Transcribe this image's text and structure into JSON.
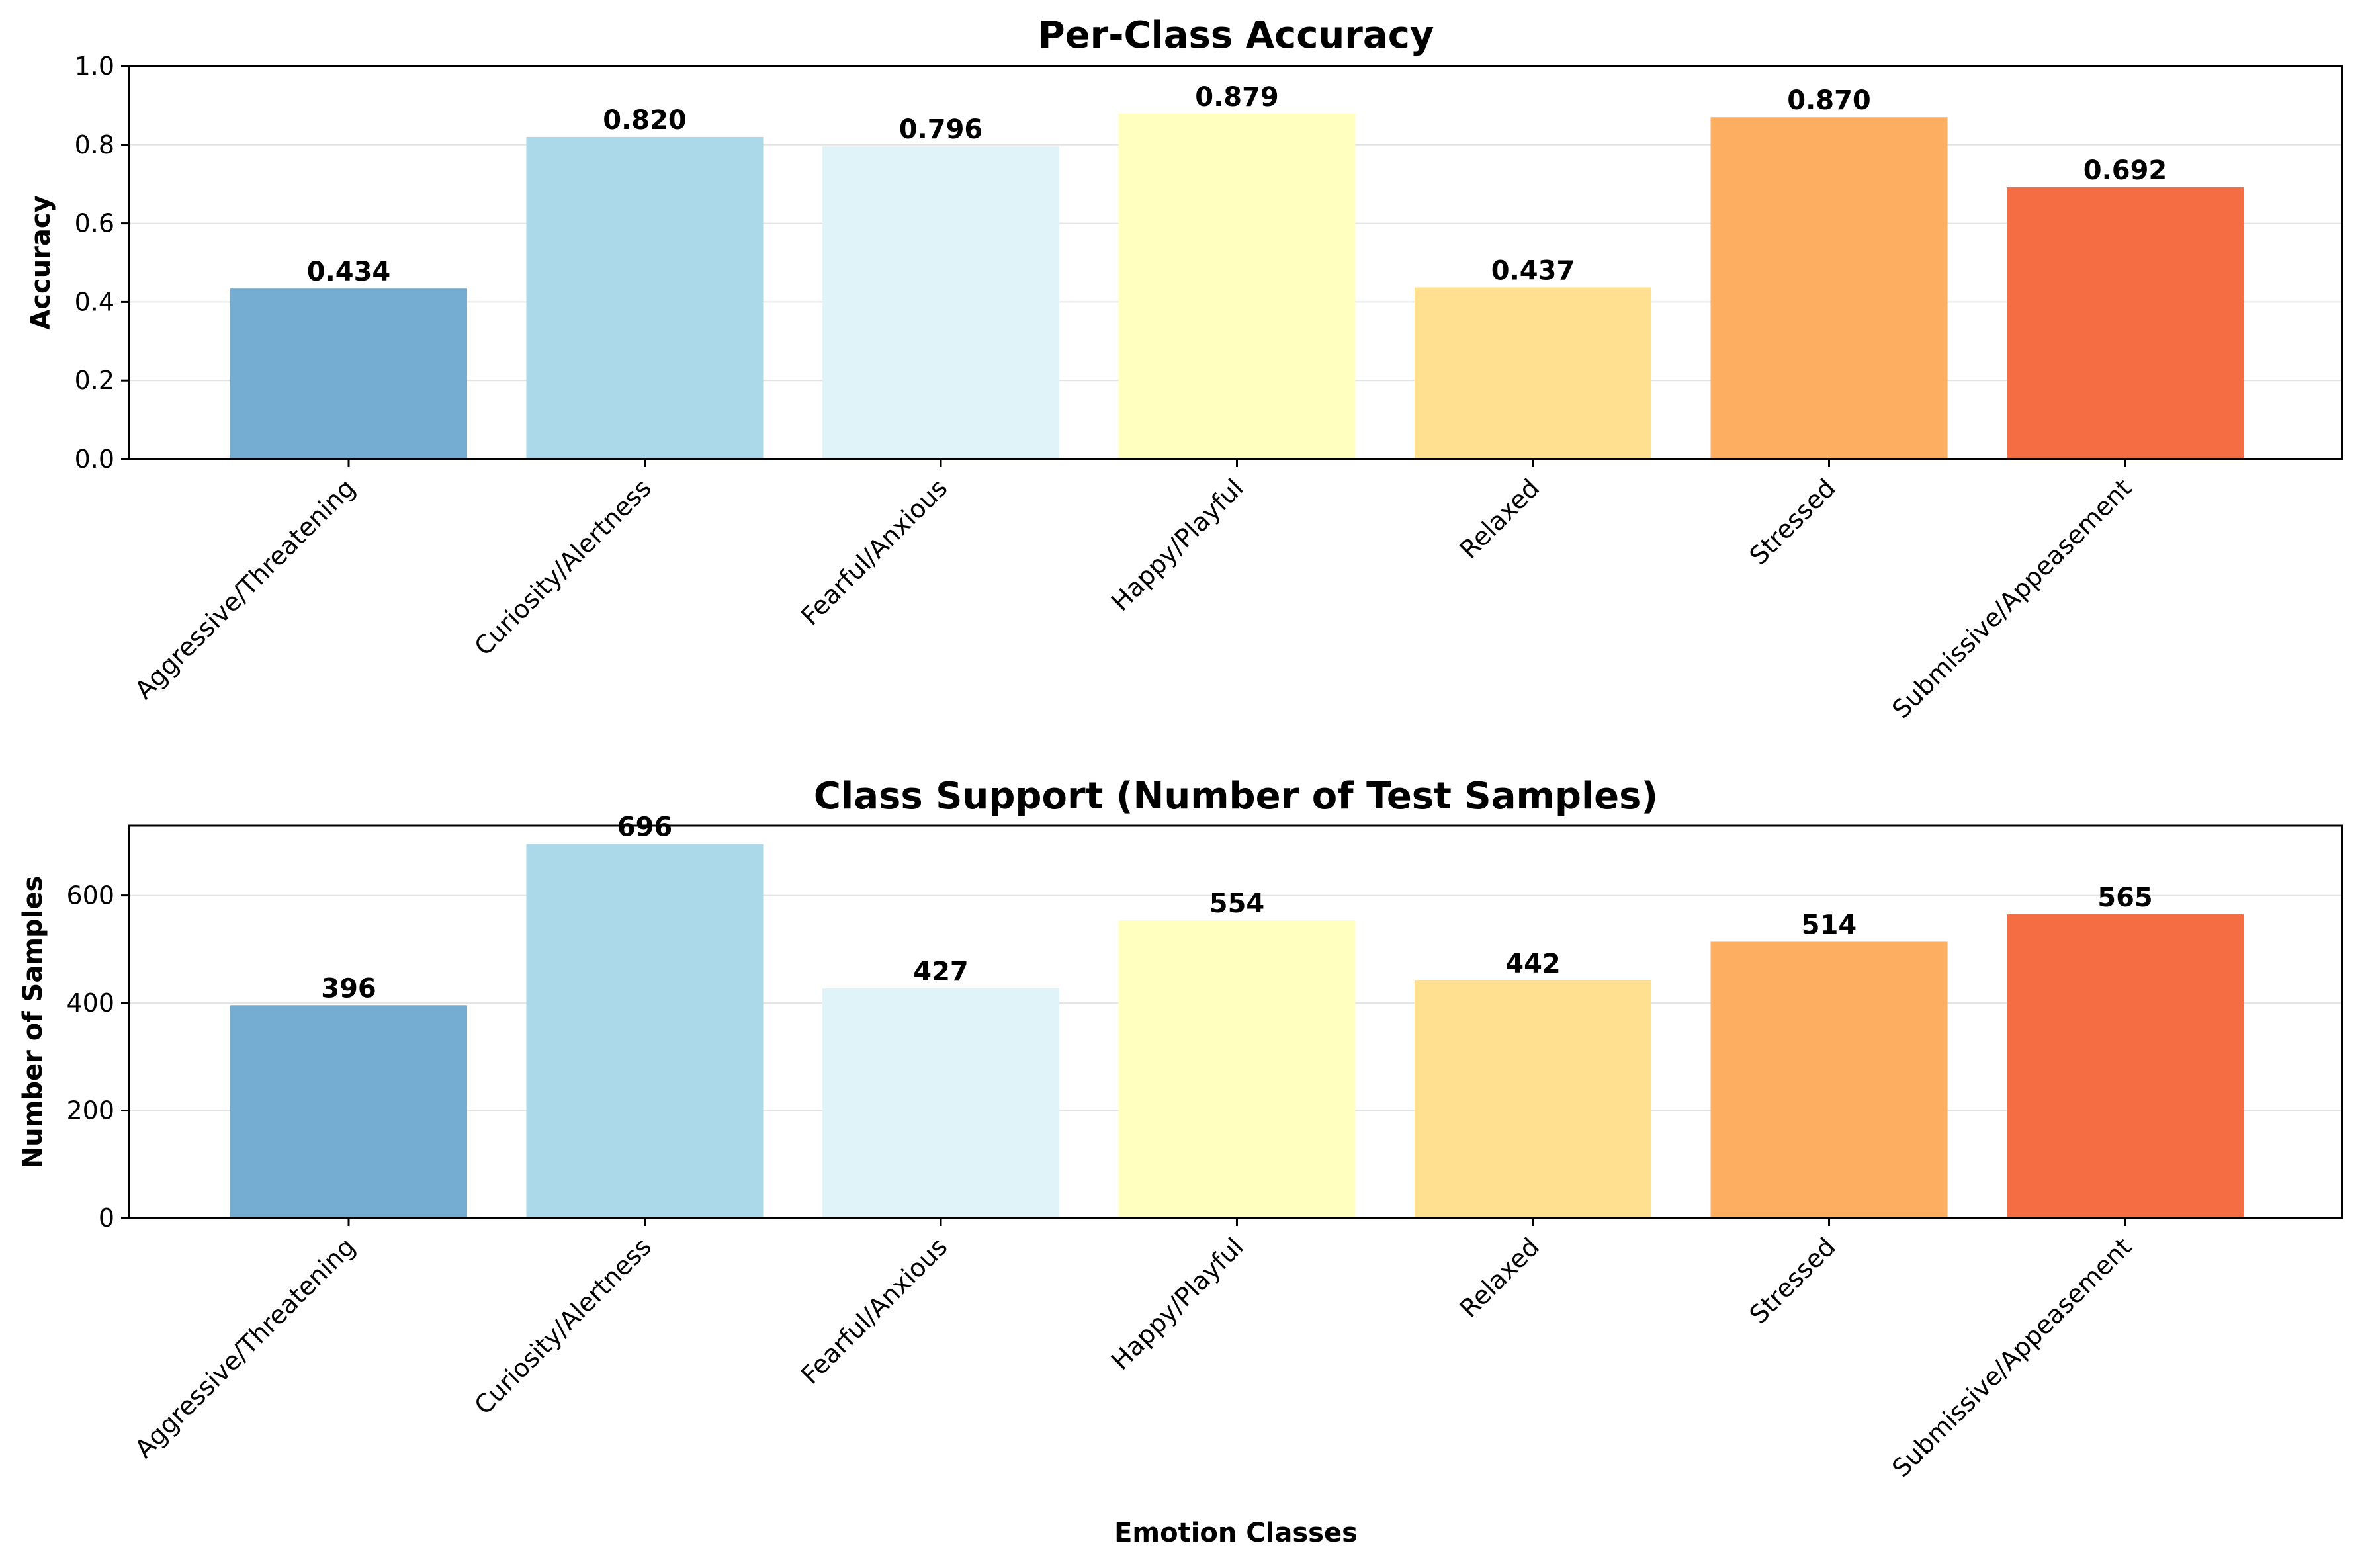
{
  "chart_data": [
    {
      "type": "bar",
      "title": "Per-Class Accuracy",
      "xlabel": "",
      "ylabel": "Accuracy",
      "ylim": [
        0,
        1.0
      ],
      "yticks": [
        0.0,
        0.2,
        0.4,
        0.6,
        0.8,
        1.0
      ],
      "ytick_labels": [
        "0.0",
        "0.2",
        "0.4",
        "0.6",
        "0.8",
        "1.0"
      ],
      "grid": "y",
      "categories": [
        "Aggressive/Threatening",
        "Curiosity/Alertness",
        "Fearful/Anxious",
        "Happy/Playful",
        "Relaxed",
        "Stressed",
        "Submissive/Appeasement"
      ],
      "values": [
        0.434,
        0.82,
        0.796,
        0.879,
        0.437,
        0.87,
        0.692
      ],
      "value_labels": [
        "0.434",
        "0.820",
        "0.796",
        "0.879",
        "0.437",
        "0.870",
        "0.692"
      ],
      "colors": [
        "#74add1",
        "#abd9e9",
        "#e0f3f8",
        "#ffffbf",
        "#fee090",
        "#fdae61",
        "#f46d43"
      ]
    },
    {
      "type": "bar",
      "title": "Class Support (Number of Test Samples)",
      "xlabel": "Emotion Classes",
      "ylabel": "Number of Samples",
      "ylim": [
        0,
        730
      ],
      "yticks": [
        0,
        200,
        400,
        600
      ],
      "ytick_labels": [
        "0",
        "200",
        "400",
        "600"
      ],
      "grid": "y",
      "categories": [
        "Aggressive/Threatening",
        "Curiosity/Alertness",
        "Fearful/Anxious",
        "Happy/Playful",
        "Relaxed",
        "Stressed",
        "Submissive/Appeasement"
      ],
      "values": [
        396,
        696,
        427,
        554,
        442,
        514,
        565
      ],
      "value_labels": [
        "396",
        "696",
        "427",
        "554",
        "442",
        "514",
        "565"
      ],
      "colors": [
        "#74add1",
        "#abd9e9",
        "#e0f3f8",
        "#ffffbf",
        "#fee090",
        "#fdae61",
        "#f46d43"
      ]
    }
  ]
}
